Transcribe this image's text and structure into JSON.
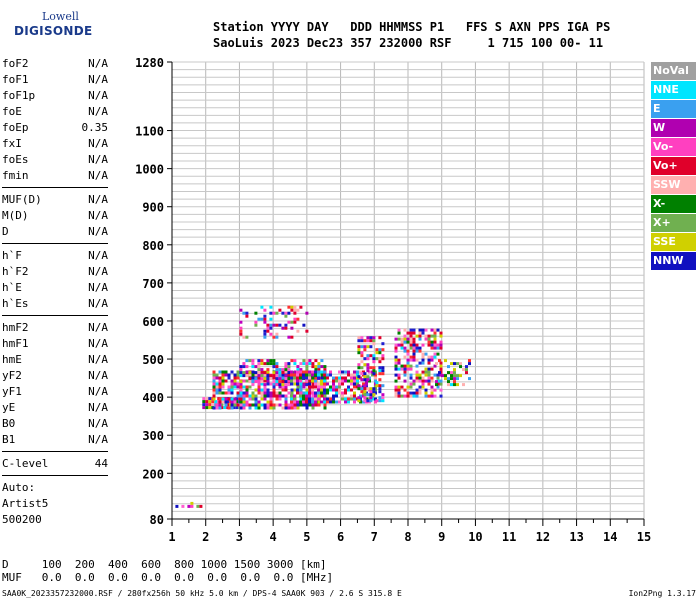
{
  "logo": {
    "line1": "Lowell",
    "line2": "DIGISONDE"
  },
  "header": {
    "line1": "Station YYYY DAY   DDD HHMMSS P1   FFS S AXN PPS IGA PS",
    "line2": "SaoLuis 2023 Dec23 357 232000 RSF     1 715 100 00- 11"
  },
  "params": {
    "group1": [
      {
        "name": "foF2",
        "value": "N/A"
      },
      {
        "name": "foF1",
        "value": "N/A"
      },
      {
        "name": "foF1p",
        "value": "N/A"
      },
      {
        "name": "foE",
        "value": "N/A"
      },
      {
        "name": "foEp",
        "value": "0.35"
      },
      {
        "name": "fxI",
        "value": "N/A"
      },
      {
        "name": "foEs",
        "value": "N/A"
      },
      {
        "name": "fmin",
        "value": "N/A"
      }
    ],
    "group2": [
      {
        "name": "MUF(D)",
        "value": "N/A"
      },
      {
        "name": "M(D)",
        "value": "N/A"
      },
      {
        "name": "D",
        "value": "N/A"
      }
    ],
    "group3": [
      {
        "name": "h`F",
        "value": "N/A"
      },
      {
        "name": "h`F2",
        "value": "N/A"
      },
      {
        "name": "h`E",
        "value": "N/A"
      },
      {
        "name": "h`Es",
        "value": "N/A"
      }
    ],
    "group4": [
      {
        "name": "hmF2",
        "value": "N/A"
      },
      {
        "name": "hmF1",
        "value": "N/A"
      },
      {
        "name": "hmE",
        "value": "N/A"
      },
      {
        "name": "yF2",
        "value": "N/A"
      },
      {
        "name": "yF1",
        "value": "N/A"
      },
      {
        "name": "yE",
        "value": "N/A"
      },
      {
        "name": "B0",
        "value": "N/A"
      },
      {
        "name": "B1",
        "value": "N/A"
      }
    ],
    "group5": [
      {
        "name": "C-level",
        "value": "44"
      }
    ]
  },
  "extra": {
    "line1": "Auto:",
    "line2": "Artist5",
    "line3": "500200"
  },
  "footer": {
    "line1": "D     100  200  400  600  800 1000 1500 3000 [km]",
    "line2": "MUF   0.0  0.0  0.0  0.0  0.0  0.0  0.0  0.0 [MHz]"
  },
  "bottom": {
    "file_info": "SAA0K_2023357232000.RSF / 280fx256h 50 kHz 5.0 km / DPS-4 SAA0K 903 / 2.6 S 315.8 E",
    "version": "Ion2Png 1.3.17"
  },
  "legend": [
    {
      "label": "NoVal",
      "color": "#a0a0a0"
    },
    {
      "label": "NNE",
      "color": "#00e5ff"
    },
    {
      "label": "E",
      "color": "#3aa0f0"
    },
    {
      "label": "W",
      "color": "#b000b0"
    },
    {
      "label": "Vo-",
      "color": "#ff40c0"
    },
    {
      "label": "Vo+",
      "color": "#e0002a"
    },
    {
      "label": "SSW",
      "color": "#ffb0b0"
    },
    {
      "label": "X-",
      "color": "#008000"
    },
    {
      "label": "X+",
      "color": "#70b050"
    },
    {
      "label": "SSE",
      "color": "#d0d000"
    },
    {
      "label": "NNW",
      "color": "#1010c0"
    }
  ],
  "chart_data": {
    "type": "scatter",
    "title": "",
    "xlabel": "",
    "ylabel": "",
    "xlim": [
      1,
      15
    ],
    "ylim": [
      80,
      1280
    ],
    "x_ticks": [
      1,
      2,
      3,
      4,
      5,
      6,
      7,
      8,
      9,
      10,
      11,
      12,
      13,
      14,
      15
    ],
    "y_ticks": [
      80,
      200,
      300,
      400,
      500,
      600,
      700,
      800,
      900,
      1000,
      1100,
      1280
    ],
    "grid": true,
    "legend_position": "right",
    "echo_regions": [
      {
        "x_range": [
          1.1,
          1.9
        ],
        "y_range": [
          110,
          125
        ],
        "density": 0.5
      },
      {
        "x_range": [
          1.9,
          3.0
        ],
        "y_range": [
          370,
          400
        ],
        "density": 0.9
      },
      {
        "x_range": [
          2.2,
          5.5
        ],
        "y_range": [
          370,
          470
        ],
        "density": 0.7
      },
      {
        "x_range": [
          3.0,
          5.5
        ],
        "y_range": [
          430,
          500
        ],
        "density": 0.55
      },
      {
        "x_range": [
          4.5,
          7.0
        ],
        "y_range": [
          390,
          470
        ],
        "density": 0.7
      },
      {
        "x_range": [
          6.5,
          7.3
        ],
        "y_range": [
          390,
          560
        ],
        "density": 0.5
      },
      {
        "x_range": [
          7.6,
          9.0
        ],
        "y_range": [
          400,
          580
        ],
        "density": 0.6
      },
      {
        "x_range": [
          8.8,
          9.8
        ],
        "y_range": [
          430,
          500
        ],
        "density": 0.4
      },
      {
        "x_range": [
          3.0,
          5.0
        ],
        "y_range": [
          560,
          640
        ],
        "density": 0.25
      }
    ]
  }
}
